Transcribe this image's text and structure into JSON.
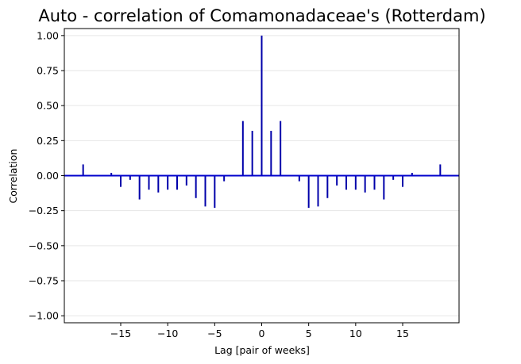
{
  "chart_data": {
    "type": "bar",
    "title": "Auto - correlation of Comamonadaceae's (Rotterdam)",
    "xlabel": "Lag [pair of weeks]",
    "ylabel": "Correlation",
    "xlim": [
      -21,
      21
    ],
    "ylim": [
      -1.05,
      1.05
    ],
    "xticks": [
      -15,
      -10,
      -5,
      0,
      5,
      10,
      15
    ],
    "xtick_labels": [
      "−15",
      "−10",
      "−5",
      "0",
      "5",
      "10",
      "15"
    ],
    "yticks": [
      1.0,
      0.75,
      0.5,
      0.25,
      0.0,
      -0.25,
      -0.5,
      -0.75,
      -1.0
    ],
    "ytick_labels": [
      "1.00",
      "0.75",
      "0.50",
      "0.25",
      "0.00",
      "−0.25",
      "−0.50",
      "−0.75",
      "−1.00"
    ],
    "grid": "horizontal",
    "color": "#0000aa",
    "baseline_color": "#0000cc",
    "lags": [
      -19,
      -16,
      -15,
      -14,
      -13,
      -12,
      -11,
      -10,
      -9,
      -8,
      -7,
      -6,
      -5,
      -4,
      -2,
      -1,
      0,
      1,
      2,
      4,
      5,
      6,
      7,
      8,
      9,
      10,
      11,
      12,
      13,
      14,
      15,
      16,
      19
    ],
    "values": [
      0.08,
      0.02,
      -0.08,
      -0.03,
      -0.17,
      -0.1,
      -0.12,
      -0.1,
      -0.1,
      -0.07,
      -0.16,
      -0.22,
      -0.23,
      -0.04,
      0.39,
      0.32,
      1.0,
      0.32,
      0.39,
      -0.04,
      -0.23,
      -0.22,
      -0.16,
      -0.07,
      -0.1,
      -0.1,
      -0.12,
      -0.1,
      -0.17,
      -0.03,
      -0.08,
      0.02,
      0.08
    ]
  }
}
